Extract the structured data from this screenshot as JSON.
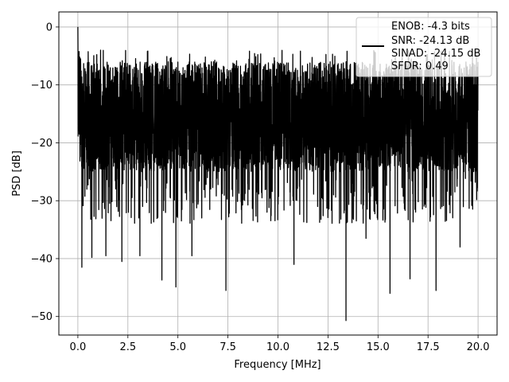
{
  "chart_data": {
    "type": "line",
    "title": "",
    "xlabel": "Frequency [MHz]",
    "ylabel": "PSD [dB]",
    "xlim": [
      -0.95,
      20.95
    ],
    "ylim": [
      -53.2,
      2.6
    ],
    "xticks": [
      0.0,
      2.5,
      5.0,
      7.5,
      10.0,
      12.5,
      15.0,
      17.5,
      20.0
    ],
    "xtick_labels": [
      "0.0",
      "2.5",
      "5.0",
      "7.5",
      "10.0",
      "12.5",
      "15.0",
      "17.5",
      "20.0"
    ],
    "yticks": [
      0,
      -10,
      -20,
      -30,
      -40,
      -50
    ],
    "ytick_labels": [
      "0",
      "−10",
      "−20",
      "−30",
      "−40",
      "−50"
    ],
    "grid": true,
    "legend_position": "top-right",
    "legend_entries": [
      "ENOB: -4.3 bits",
      "SNR: -24.13 dB",
      "SINAD: -24.15 dB",
      "SFDR: 0.49"
    ],
    "line_color": "#000000",
    "series": [
      {
        "x_range": [
          0.0,
          20.0
        ],
        "points": 4000,
        "pattern": "dense noise, approx -25 to -6 dB band",
        "features": [
          {
            "x": 0.0,
            "y": 0.0
          },
          {
            "x": 0.2,
            "y": -41.5
          },
          {
            "x": 0.7,
            "y": -39.8
          },
          {
            "x": 1.4,
            "y": -39.5
          },
          {
            "x": 2.2,
            "y": -40.5
          },
          {
            "x": 3.1,
            "y": -39.5
          },
          {
            "x": 4.2,
            "y": -43.7
          },
          {
            "x": 4.9,
            "y": -44.9
          },
          {
            "x": 5.7,
            "y": -39.5
          },
          {
            "x": 7.4,
            "y": -45.5
          },
          {
            "x": 10.8,
            "y": -41.0
          },
          {
            "x": 13.4,
            "y": -50.7
          },
          {
            "x": 14.4,
            "y": -36.5
          },
          {
            "x": 15.6,
            "y": -46.0
          },
          {
            "x": 16.6,
            "y": -43.5
          },
          {
            "x": 17.9,
            "y": -45.5
          },
          {
            "x": 19.1,
            "y": -38.0
          }
        ]
      }
    ]
  }
}
